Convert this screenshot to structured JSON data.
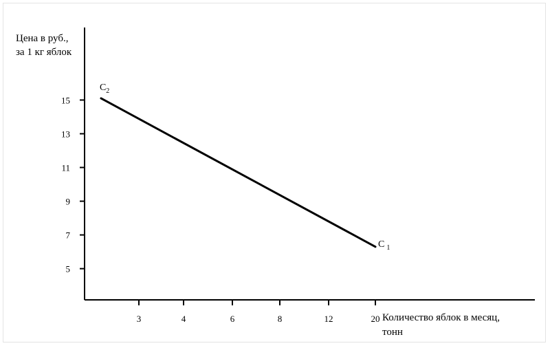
{
  "chart_data": {
    "type": "line",
    "ylabel_lines": [
      "Цена в руб.,",
      "за 1 кг яблок"
    ],
    "xlabel_lines": [
      "Количество яблок в месяц,",
      "тонн"
    ],
    "x_ticks": [
      "3",
      "4",
      "6",
      "8",
      "12",
      "20"
    ],
    "y_ticks": [
      15,
      13,
      11,
      9,
      7,
      5
    ],
    "ylim": [
      3.15,
      19.3
    ],
    "grid": false,
    "series": [
      {
        "points": [
          {
            "x_index": -0.8,
            "y": 15.1,
            "label": "С",
            "sub": "2"
          },
          {
            "x_index": 5.0,
            "y": 6.3,
            "label": "С",
            "sub": "1"
          }
        ]
      }
    ]
  },
  "colors": {
    "line": "#000000",
    "axis": "#000000"
  }
}
